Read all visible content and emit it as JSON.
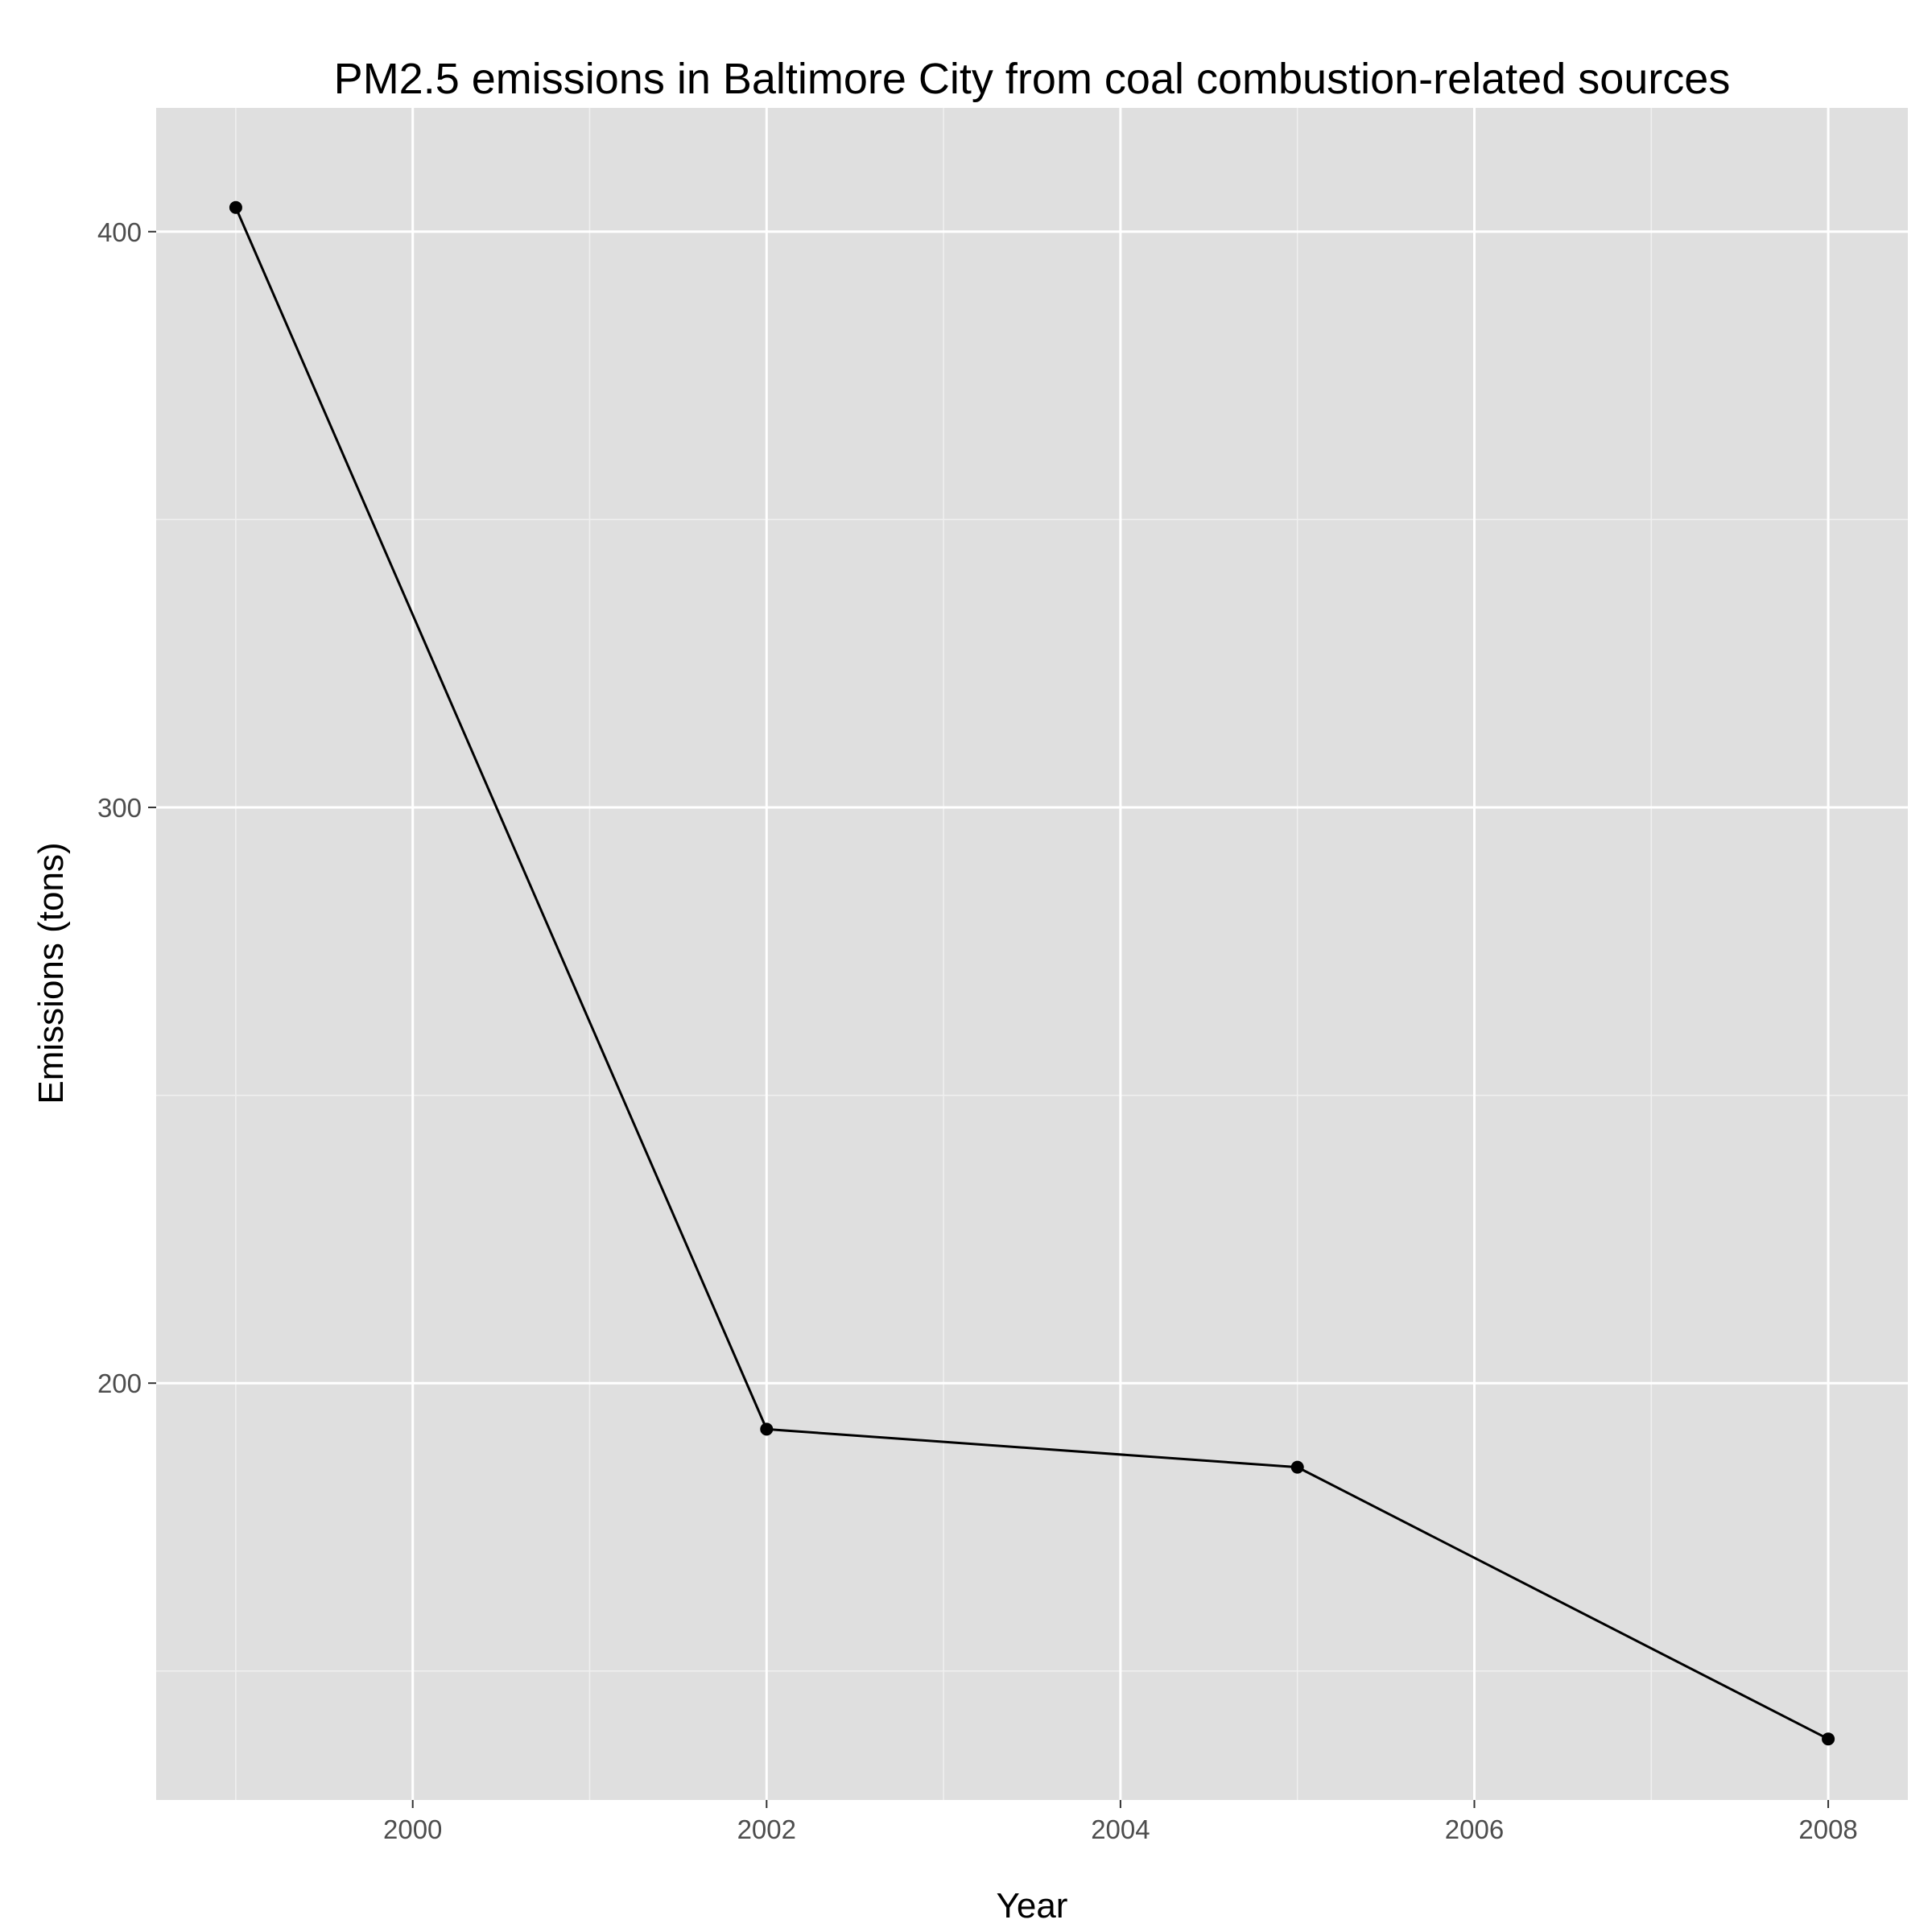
{
  "chart_data": {
    "type": "line",
    "title": "PM2.5 emissions in Baltimore City from coal combustion-related sources",
    "xlabel": "Year",
    "ylabel": "Emissions (tons)",
    "x": [
      1999,
      2002,
      2005,
      2008
    ],
    "series": [
      {
        "values": [
          404.2,
          192.0,
          185.4,
          138.2
        ]
      }
    ],
    "xlim": [
      1998.55,
      2008.45
    ],
    "ylim": [
      127.6,
      421.5
    ],
    "x_ticks": [
      2000,
      2002,
      2004,
      2006,
      2008
    ],
    "x_minor_ticks": [
      1999,
      2001,
      2003,
      2005,
      2007
    ],
    "y_ticks": [
      200,
      300,
      400
    ],
    "y_minor_ticks": [
      150,
      250,
      350
    ],
    "grid": true,
    "legend": "none",
    "colors": {
      "panel_background": "#dfdfdf",
      "grid_major": "#ffffff",
      "grid_minor": "#f0f0f0",
      "line": "#000000",
      "point": "#000000"
    }
  }
}
